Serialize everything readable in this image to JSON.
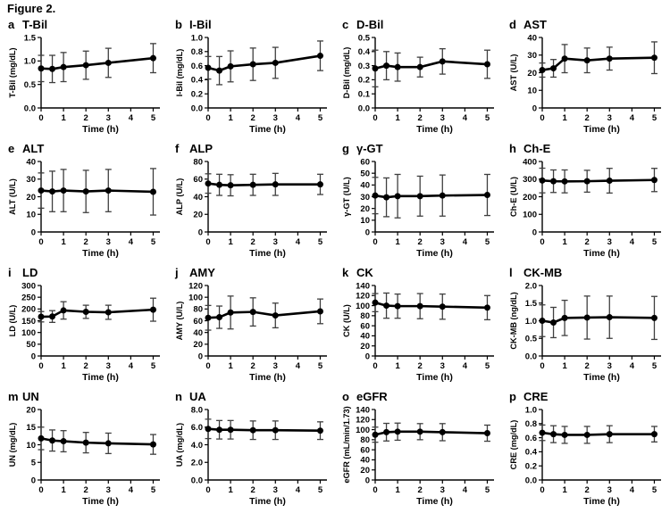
{
  "figure": {
    "title": "Figure 2."
  },
  "colors": {
    "line": "#000000",
    "point": "#000000",
    "error_bar": "#3f3f3f",
    "axis": "#000000"
  },
  "x_axis": {
    "label": "Time (h)",
    "ticks": [
      "0",
      "1",
      "2",
      "3",
      "4",
      "5"
    ],
    "xlim": [
      0,
      5.3
    ]
  },
  "chart_data": [
    {
      "type": "line",
      "letter": "a",
      "title": "T-Bil",
      "ylabel": "T-Bil (mg/dL)",
      "ylim": [
        0,
        1.5
      ],
      "yticks": [
        "0.0",
        "0.5",
        "1.0",
        "1.5"
      ],
      "x": [
        0,
        0.5,
        1,
        2,
        3,
        5
      ],
      "y": [
        0.84,
        0.83,
        0.87,
        0.91,
        0.96,
        1.06
      ],
      "err": [
        0.28,
        0.29,
        0.31,
        0.3,
        0.31,
        0.31
      ]
    },
    {
      "type": "line",
      "letter": "b",
      "title": "I-Bil",
      "ylabel": "I-Bil (mg/dL)",
      "ylim": [
        0,
        1.0
      ],
      "yticks": [
        "0.0",
        "0.2",
        "0.4",
        "0.6",
        "0.8",
        "1.0"
      ],
      "x": [
        0,
        0.5,
        1,
        2,
        3,
        5
      ],
      "y": [
        0.57,
        0.53,
        0.59,
        0.62,
        0.64,
        0.74
      ],
      "err": [
        0.16,
        0.2,
        0.22,
        0.23,
        0.22,
        0.21
      ]
    },
    {
      "type": "line",
      "letter": "c",
      "title": "D-Bil",
      "ylabel": "D-Bil (mg/dL)",
      "ylim": [
        0,
        0.5
      ],
      "yticks": [
        "0.0",
        "0.1",
        "0.2",
        "0.3",
        "0.4",
        "0.5"
      ],
      "x": [
        0,
        0.5,
        1,
        2,
        3,
        5
      ],
      "y": [
        0.28,
        0.3,
        0.29,
        0.29,
        0.33,
        0.31
      ],
      "err": [
        0.13,
        0.1,
        0.1,
        0.07,
        0.09,
        0.1
      ]
    },
    {
      "type": "line",
      "letter": "d",
      "title": "AST",
      "ylabel": "AST (U/L)",
      "ylim": [
        0,
        40
      ],
      "yticks": [
        "0",
        "10",
        "20",
        "30",
        "40"
      ],
      "x": [
        0,
        0.5,
        1,
        2,
        3,
        5
      ],
      "y": [
        21.5,
        22.5,
        28,
        27,
        28,
        28.5
      ],
      "err": [
        4,
        5,
        8,
        7,
        6.5,
        9
      ]
    },
    {
      "type": "line",
      "letter": "e",
      "title": "ALT",
      "ylabel": "ALT (U/L)",
      "ylim": [
        0,
        40
      ],
      "yticks": [
        "0",
        "10",
        "20",
        "30",
        "40"
      ],
      "x": [
        0,
        0.5,
        1,
        2,
        3,
        5
      ],
      "y": [
        23.5,
        23,
        23.5,
        23,
        23.5,
        22.8
      ],
      "err": [
        10,
        11.5,
        12,
        12,
        12,
        13.2
      ]
    },
    {
      "type": "line",
      "letter": "f",
      "title": "ALP",
      "ylabel": "ALP (U/L)",
      "ylim": [
        0,
        80
      ],
      "yticks": [
        "0",
        "20",
        "40",
        "60",
        "80"
      ],
      "x": [
        0,
        0.5,
        1,
        2,
        3,
        5
      ],
      "y": [
        55,
        53.5,
        53,
        53.5,
        54,
        54
      ],
      "err": [
        11,
        12,
        12,
        12,
        12.5,
        11.5
      ]
    },
    {
      "type": "line",
      "letter": "g",
      "title": "γ-GT",
      "ylabel": "γ-GT (U/L)",
      "ylim": [
        0,
        60
      ],
      "yticks": [
        "0",
        "10",
        "20",
        "30",
        "40",
        "50",
        "60"
      ],
      "x": [
        0,
        0.5,
        1,
        2,
        3,
        5
      ],
      "y": [
        31,
        29.5,
        30.5,
        30.5,
        31,
        31.5
      ],
      "err": [
        15.5,
        16.5,
        18.5,
        17,
        17.5,
        17.5
      ]
    },
    {
      "type": "line",
      "letter": "h",
      "title": "Ch-E",
      "ylabel": "Ch-E (U/L)",
      "ylim": [
        0,
        400
      ],
      "yticks": [
        "0",
        "100",
        "200",
        "300",
        "400"
      ],
      "x": [
        0,
        0.5,
        1,
        2,
        3,
        5
      ],
      "y": [
        292,
        288,
        287,
        288,
        291,
        295
      ],
      "err": [
        70,
        64,
        65,
        62,
        70,
        66
      ]
    },
    {
      "type": "line",
      "letter": "i",
      "title": "LD",
      "ylabel": "LD (U/L)",
      "ylim": [
        0,
        300
      ],
      "yticks": [
        "0",
        "50",
        "100",
        "150",
        "200",
        "250",
        "300"
      ],
      "x": [
        0,
        0.5,
        1,
        2,
        3,
        5
      ],
      "y": [
        167,
        168,
        194,
        188,
        186,
        197
      ],
      "err": [
        22,
        25,
        37,
        28,
        30,
        49
      ]
    },
    {
      "type": "line",
      "letter": "j",
      "title": "AMY",
      "ylabel": "AMY (U/L)",
      "ylim": [
        0,
        120
      ],
      "yticks": [
        "0",
        "20",
        "40",
        "60",
        "80",
        "100",
        "120"
      ],
      "x": [
        0,
        0.5,
        1,
        2,
        3,
        5
      ],
      "y": [
        65,
        66,
        74,
        75,
        69,
        76
      ],
      "err": [
        21,
        19,
        28,
        24,
        21,
        21
      ]
    },
    {
      "type": "line",
      "letter": "k",
      "title": "CK",
      "ylabel": "CK (U/L)",
      "ylim": [
        0,
        140
      ],
      "yticks": [
        "0",
        "20",
        "40",
        "60",
        "80",
        "100",
        "120",
        "140"
      ],
      "x": [
        0,
        0.5,
        1,
        2,
        3,
        5
      ],
      "y": [
        106,
        100,
        99,
        99,
        98,
        96
      ],
      "err": [
        18,
        25,
        24,
        25,
        25,
        24
      ]
    },
    {
      "type": "line",
      "letter": "l",
      "title": "CK-MB",
      "ylabel": "CK-MB (ng/dL)",
      "ylim": [
        0,
        2.0
      ],
      "yticks": [
        "0.0",
        "0.5",
        "1.0",
        "1.5",
        "2.0"
      ],
      "x": [
        0,
        0.5,
        1,
        2,
        3,
        5
      ],
      "y": [
        1.0,
        0.95,
        1.08,
        1.09,
        1.1,
        1.08
      ],
      "err": [
        0.45,
        0.43,
        0.5,
        0.61,
        0.6,
        0.61
      ]
    },
    {
      "type": "line",
      "letter": "m",
      "title": "UN",
      "ylabel": "UN (mg/dL)",
      "ylim": [
        0,
        20
      ],
      "yticks": [
        "0",
        "5",
        "10",
        "15",
        "20"
      ],
      "x": [
        0,
        0.5,
        1,
        2,
        3,
        5
      ],
      "y": [
        11.8,
        11.2,
        11.0,
        10.6,
        10.4,
        10.1
      ],
      "err": [
        3.2,
        3.0,
        3.0,
        2.9,
        2.9,
        2.8
      ]
    },
    {
      "type": "line",
      "letter": "n",
      "title": "UA",
      "ylabel": "UA (mg/dL)",
      "ylim": [
        0,
        8
      ],
      "yticks": [
        "0.0",
        "2.0",
        "4.0",
        "6.0",
        "8.0"
      ],
      "x": [
        0,
        0.5,
        1,
        2,
        3,
        5
      ],
      "y": [
        5.8,
        5.7,
        5.7,
        5.65,
        5.65,
        5.6
      ],
      "err": [
        1.1,
        1.05,
        1.05,
        1.05,
        1.05,
        1.0
      ]
    },
    {
      "type": "line",
      "letter": "o",
      "title": "eGFR",
      "ylabel": "eGFR (mL/min/1.73)",
      "ylim": [
        0,
        140
      ],
      "yticks": [
        "0",
        "20",
        "40",
        "60",
        "80",
        "100",
        "120",
        "140"
      ],
      "x": [
        0,
        0.5,
        1,
        2,
        3,
        5
      ],
      "y": [
        90,
        95,
        96,
        96,
        95,
        93
      ],
      "err": [
        15,
        17.5,
        17,
        16,
        17,
        16
      ]
    },
    {
      "type": "line",
      "letter": "p",
      "title": "CRE",
      "ylabel": "CRE (mg/dL)",
      "ylim": [
        0,
        1.0
      ],
      "yticks": [
        "0.0",
        "0.2",
        "0.4",
        "0.6",
        "0.8",
        "1.0"
      ],
      "x": [
        0,
        0.5,
        1,
        2,
        3,
        5
      ],
      "y": [
        0.67,
        0.65,
        0.64,
        0.64,
        0.65,
        0.65
      ],
      "err": [
        0.11,
        0.12,
        0.12,
        0.12,
        0.12,
        0.11
      ]
    }
  ]
}
